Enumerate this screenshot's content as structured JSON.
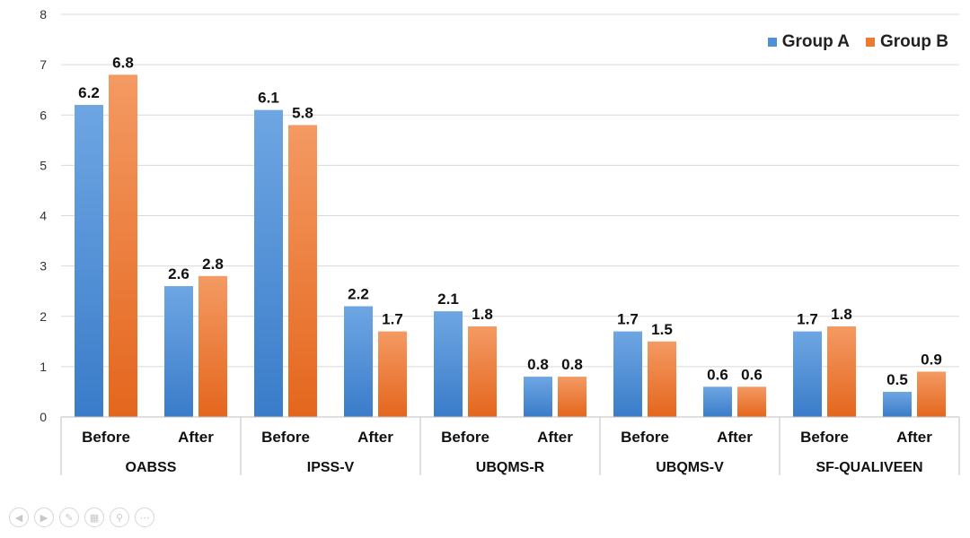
{
  "chart_data": {
    "type": "bar",
    "title": "",
    "ylabel": "",
    "xlabel": "",
    "ylim": [
      0,
      8
    ],
    "yticks": [
      "0",
      "1",
      "2",
      "3",
      "4",
      "5",
      "6",
      "7",
      "8"
    ],
    "grid": true,
    "legend_position": "top-right",
    "groups": [
      {
        "name": "OABSS",
        "categories": [
          "Before",
          "After"
        ]
      },
      {
        "name": "IPSS-V",
        "categories": [
          "Before",
          "After"
        ]
      },
      {
        "name": "UBQMS-R",
        "categories": [
          "Before",
          "After"
        ]
      },
      {
        "name": "UBQMS-V",
        "categories": [
          "Before",
          "After"
        ]
      },
      {
        "name": "SF-QUALIVEEN",
        "categories": [
          "Before",
          "After"
        ]
      }
    ],
    "series": [
      {
        "name": "Group A",
        "color": "#4f8fd6",
        "values": [
          6.2,
          2.6,
          6.1,
          2.2,
          2.1,
          0.8,
          1.7,
          0.6,
          1.7,
          0.5
        ],
        "labels": [
          "6.2",
          "2.6",
          "6.1",
          "2.2",
          "2.1",
          "0.8",
          "1.7",
          "0.6",
          "1.7",
          "0.5"
        ]
      },
      {
        "name": "Group B",
        "color": "#ee7a30",
        "values": [
          6.8,
          2.8,
          5.8,
          1.7,
          1.8,
          0.8,
          1.5,
          0.6,
          1.8,
          0.9
        ],
        "labels": [
          "6.8",
          "2.8",
          "5.8",
          "1.7",
          "1.8",
          "0.8",
          "1.5",
          "0.6",
          "1.8",
          "0.9"
        ]
      }
    ]
  },
  "legend": {
    "group_a": "Group A",
    "group_b": "Group B"
  },
  "toolbar": {
    "icons": [
      "prev-icon",
      "next-icon",
      "pen-icon",
      "slides-icon",
      "zoom-icon",
      "more-icon"
    ]
  }
}
